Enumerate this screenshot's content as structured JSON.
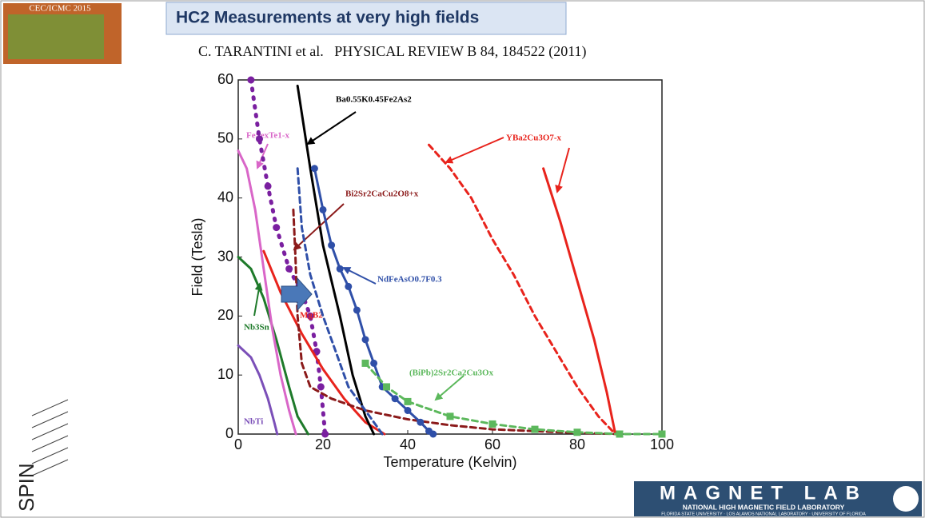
{
  "slide": {
    "title": "HC2 Measurements at very high fields",
    "citation": "C. TARANTINI et al.   PHYSICAL REVIEW B 84, 184522 (2011)",
    "conference_logo": "CEC/ICMC 2015",
    "spin_logo": "SPIN",
    "lab_logo": "MAGNET LAB",
    "lab_name": "NATIONAL HIGH MAGNETIC FIELD LABORATORY",
    "lab_partners": "FLORIDA STATE UNIVERSITY · LOS ALAMOS NATIONAL LABORATORY · UNIVERSITY OF FLORIDA"
  },
  "chart_data": {
    "type": "line",
    "x_label": "Temperature (Kelvin)",
    "y_label": "Field (Tesla)",
    "xlim": [
      0,
      100
    ],
    "ylim": [
      0,
      60
    ],
    "xticks": [
      0,
      20,
      40,
      60,
      80,
      100
    ],
    "yticks": [
      0,
      10,
      20,
      30,
      40,
      50,
      60
    ],
    "series": [
      {
        "name": "NbTi",
        "color": "#7b4fb8",
        "dash": "solid",
        "x": [
          0,
          3,
          5,
          7,
          8.5,
          9.2
        ],
        "values": [
          15,
          13,
          10,
          6,
          2,
          0
        ]
      },
      {
        "name": "Nb3Sn",
        "color": "#1e7a2a",
        "dash": "solid",
        "x": [
          0,
          3,
          6,
          9,
          12,
          14,
          16.5
        ],
        "values": [
          30,
          28,
          23,
          16,
          8,
          3,
          0
        ]
      },
      {
        "name": "FeSexTe1-x",
        "color": "#d966c8",
        "dash": "solid",
        "x": [
          0,
          2,
          4,
          6,
          8,
          10,
          12,
          13.6
        ],
        "values": [
          48,
          45,
          38,
          28,
          18,
          10,
          4,
          0
        ]
      },
      {
        "color": "#7a1fa0",
        "dash": "dotted",
        "marker": "circle",
        "x": [
          3,
          5,
          7,
          9,
          12,
          15,
          17,
          18.5,
          19.5,
          20.5
        ],
        "values": [
          60,
          50,
          42,
          35,
          28,
          24,
          20,
          14,
          8,
          0
        ]
      },
      {
        "name": "MgB2",
        "color": "#e8231c",
        "dash": "solid",
        "x": [
          6,
          10,
          15,
          20,
          25,
          30,
          34.5
        ],
        "values": [
          31,
          24,
          17,
          11,
          6,
          2,
          0
        ]
      },
      {
        "name": "Ba0.55K0.45Fe2As2",
        "color": "#000000",
        "dash": "solid",
        "x": [
          14,
          17,
          20,
          24,
          27,
          30,
          32
        ],
        "values": [
          59,
          45,
          32,
          20,
          10,
          3,
          0
        ]
      },
      {
        "name": "Bi2Sr2CaCu2O8+x",
        "color": "#8b1a1a",
        "dash": "dashed",
        "x": [
          13,
          13.5,
          14,
          15,
          17,
          22,
          30,
          40,
          50,
          60,
          80,
          90
        ],
        "values": [
          38,
          30,
          20,
          12,
          8,
          6,
          4,
          2.5,
          1.5,
          0.8,
          0.2,
          0
        ]
      },
      {
        "name": "NdFeAsO0.7F0.3",
        "color": "#2f4fa8",
        "dash": "solid",
        "marker": "circle",
        "x": [
          18,
          20,
          22,
          24,
          26,
          28,
          30,
          32,
          34,
          37,
          40,
          43,
          45,
          46
        ],
        "values": [
          45,
          38,
          32,
          28,
          25,
          21,
          16,
          12,
          8,
          6,
          4,
          2,
          0.5,
          0
        ]
      },
      {
        "color": "#2f4fa8",
        "dash": "dashed",
        "x": [
          14,
          15,
          17,
          20,
          23,
          26,
          30,
          34
        ],
        "values": [
          45,
          35,
          27,
          20,
          14,
          8,
          4,
          0
        ]
      },
      {
        "name": "YBa2Cu3O7-x",
        "color": "#e8231c",
        "dash": "dashed",
        "x": [
          45,
          50,
          55,
          60,
          65,
          70,
          75,
          80,
          85,
          89
        ],
        "values": [
          49,
          45,
          40,
          33,
          27,
          20,
          14,
          8,
          3,
          0
        ]
      },
      {
        "color": "#e8231c",
        "dash": "solid",
        "x": [
          72,
          76,
          80,
          84,
          87,
          89
        ],
        "values": [
          45,
          36,
          26,
          16,
          7,
          0
        ]
      },
      {
        "name": "(BiPb)2Sr2Ca2Cu3Ox",
        "color": "#5cb85c",
        "dash": "dashed",
        "marker": "square",
        "x": [
          30,
          35,
          40,
          50,
          60,
          70,
          80,
          90,
          100
        ],
        "values": [
          12,
          8,
          5.5,
          3,
          1.7,
          0.8,
          0.3,
          0,
          0
        ]
      }
    ]
  }
}
